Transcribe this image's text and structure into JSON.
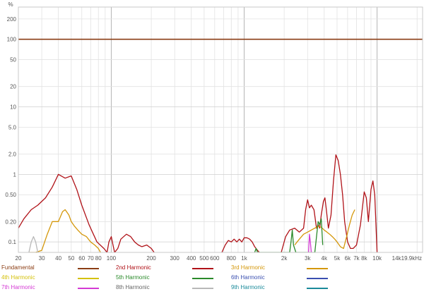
{
  "chart_data": {
    "type": "line",
    "title": "",
    "ylabel": "%",
    "xlabel": "",
    "x_scale": "log",
    "y_scale": "log",
    "xlim": [
      20,
      22000
    ],
    "ylim": [
      0.07,
      300
    ],
    "grid": true,
    "legend_position": "bottom",
    "x_ticks": [
      {
        "v": 20,
        "label": "20"
      },
      {
        "v": 30,
        "label": "30"
      },
      {
        "v": 40,
        "label": "40"
      },
      {
        "v": 50,
        "label": "50"
      },
      {
        "v": 60,
        "label": "60"
      },
      {
        "v": 70,
        "label": "70"
      },
      {
        "v": 80,
        "label": "80"
      },
      {
        "v": 100,
        "label": "100"
      },
      {
        "v": 200,
        "label": "200"
      },
      {
        "v": 300,
        "label": "300"
      },
      {
        "v": 400,
        "label": "400"
      },
      {
        "v": 500,
        "label": "500"
      },
      {
        "v": 600,
        "label": "600"
      },
      {
        "v": 800,
        "label": "800"
      },
      {
        "v": 1000,
        "label": "1k"
      },
      {
        "v": 2000,
        "label": "2k"
      },
      {
        "v": 3000,
        "label": "3k"
      },
      {
        "v": 4000,
        "label": "4k"
      },
      {
        "v": 5000,
        "label": "5k"
      },
      {
        "v": 6000,
        "label": "6k"
      },
      {
        "v": 7000,
        "label": "7k"
      },
      {
        "v": 8000,
        "label": "8k"
      },
      {
        "v": 10000,
        "label": "10k"
      },
      {
        "v": 14000,
        "label": "14k"
      },
      {
        "v": 19900,
        "label": "19.9kHz"
      }
    ],
    "y_ticks": [
      {
        "v": 0.1,
        "label": "0.1"
      },
      {
        "v": 0.2,
        "label": "0.20"
      },
      {
        "v": 0.5,
        "label": "0.50"
      },
      {
        "v": 1,
        "label": "1"
      },
      {
        "v": 2,
        "label": "2.0"
      },
      {
        "v": 5,
        "label": "5.0"
      },
      {
        "v": 10,
        "label": "10"
      },
      {
        "v": 20,
        "label": "20"
      },
      {
        "v": 50,
        "label": "50"
      },
      {
        "v": 100,
        "label": "100"
      },
      {
        "v": 200,
        "label": "200"
      }
    ],
    "series": [
      {
        "name": "Fundamental",
        "color": "#8b3d14",
        "x": [
          20,
          22000
        ],
        "y": [
          100,
          100
        ]
      },
      {
        "name": "2nd Harmonic",
        "color": "#b01218",
        "x": [
          20,
          22,
          25,
          28,
          32,
          36,
          40,
          45,
          50,
          55,
          60,
          68,
          78,
          88,
          93,
          96,
          100,
          103,
          106,
          112,
          118,
          130,
          140,
          150,
          160,
          170,
          185,
          200,
          210
        ],
        "y": [
          0.16,
          0.22,
          0.3,
          0.35,
          0.45,
          0.65,
          1.0,
          0.88,
          0.95,
          0.6,
          0.35,
          0.18,
          0.1,
          0.08,
          0.07,
          0.1,
          0.12,
          0.09,
          0.07,
          0.08,
          0.11,
          0.13,
          0.12,
          0.1,
          0.09,
          0.085,
          0.09,
          0.08,
          0.07
        ]
      },
      {
        "name": "2nd Harmonic",
        "color": "#b01218",
        "x": [
          680,
          720,
          760,
          800,
          840,
          880,
          920,
          960,
          1000,
          1050,
          1100,
          1150,
          1200,
          1260,
          1300
        ],
        "y": [
          0.07,
          0.09,
          0.105,
          0.1,
          0.11,
          0.1,
          0.11,
          0.1,
          0.115,
          0.115,
          0.11,
          0.1,
          0.085,
          0.075,
          0.07
        ]
      },
      {
        "name": "2nd Harmonic",
        "color": "#b01218",
        "x": [
          1900,
          2050,
          2200,
          2400,
          2600,
          2800,
          2900,
          3000,
          3100,
          3200,
          3350,
          3500,
          3600,
          3700,
          3800,
          3950,
          4050,
          4150,
          4300,
          4500,
          4700,
          4900,
          5100,
          5300,
          5500,
          5700,
          6000,
          6300,
          6600,
          7000,
          7500,
          8000,
          8300,
          8600,
          9000,
          9300,
          9600,
          10000
        ],
        "y": [
          0.07,
          0.12,
          0.15,
          0.16,
          0.14,
          0.16,
          0.3,
          0.42,
          0.32,
          0.35,
          0.3,
          0.16,
          0.18,
          0.16,
          0.25,
          0.4,
          0.45,
          0.3,
          0.16,
          0.25,
          0.8,
          1.95,
          1.6,
          1.0,
          0.5,
          0.2,
          0.1,
          0.08,
          0.08,
          0.09,
          0.18,
          0.55,
          0.45,
          0.2,
          0.6,
          0.8,
          0.5,
          0.07
        ]
      },
      {
        "name": "3rd Harmonic",
        "color": "#d4970a",
        "x": [
          24,
          27,
          30,
          33,
          36,
          40,
          43,
          45,
          48,
          50,
          53,
          56,
          60,
          65,
          70,
          75,
          80,
          83
        ],
        "y": [
          0.07,
          0.07,
          0.075,
          0.13,
          0.2,
          0.2,
          0.28,
          0.3,
          0.25,
          0.2,
          0.17,
          0.15,
          0.13,
          0.12,
          0.1,
          0.09,
          0.08,
          0.07
        ]
      },
      {
        "name": "3rd Harmonic",
        "color": "#d4970a",
        "x": [
          2400,
          2600,
          2800,
          3000,
          3200,
          3400,
          3600,
          3800,
          4000,
          4200,
          4400,
          4600,
          4800,
          5000,
          5300,
          5600,
          5900,
          6200,
          6500,
          6800
        ],
        "y": [
          0.09,
          0.11,
          0.13,
          0.14,
          0.15,
          0.16,
          0.17,
          0.165,
          0.15,
          0.14,
          0.13,
          0.12,
          0.11,
          0.1,
          0.085,
          0.08,
          0.12,
          0.18,
          0.25,
          0.3
        ]
      },
      {
        "name": "5th Harmonic",
        "color": "#2a8a2a",
        "x": [
          1200,
          1230,
          1260,
          2200,
          2250,
          2300,
          2350,
          2450,
          3400,
          3500,
          3600,
          3700,
          3800,
          3900
        ],
        "y": [
          0.07,
          0.08,
          0.07,
          0.07,
          0.1,
          0.15,
          0.09,
          0.07,
          0.07,
          0.12,
          0.2,
          0.18,
          0.22,
          0.09
        ]
      },
      {
        "name": "7th Harmonic",
        "color": "#d43ad4",
        "x": [
          3050,
          3100,
          3150,
          3200
        ],
        "y": [
          0.07,
          0.13,
          0.1,
          0.07
        ]
      },
      {
        "name": "8th Harmonic",
        "color": "#b8b8b8",
        "x": [
          24,
          25,
          26,
          27,
          28
        ],
        "y": [
          0.07,
          0.1,
          0.12,
          0.1,
          0.07
        ]
      }
    ]
  },
  "legend": {
    "items": [
      {
        "label": "Fundamental",
        "text_color": "#8b3d14",
        "line_color": "#8b3d14"
      },
      {
        "label": "2nd Harmonic",
        "text_color": "#b01218",
        "line_color": "#b01218"
      },
      {
        "label": "3rd Harmonic",
        "text_color": "#d4970a",
        "line_color": "#d4970a"
      },
      {
        "label": "4th Harmonic",
        "text_color": "#d4c10a",
        "line_color": "#d4c10a"
      },
      {
        "label": "5th Harmonic",
        "text_color": "#2a8a2a",
        "line_color": "#2a8a2a"
      },
      {
        "label": "6th Harmonic",
        "text_color": "#3a4fb0",
        "line_color": "#3a4fb0"
      },
      {
        "label": "7th Harmonic",
        "text_color": "#d43ad4",
        "line_color": "#d43ad4"
      },
      {
        "label": "8th Harmonic",
        "text_color": "#666666",
        "line_color": "#b8b8b8"
      },
      {
        "label": "9th Harmonic",
        "text_color": "#1a8a9a",
        "line_color": "#1a8a9a"
      }
    ]
  }
}
